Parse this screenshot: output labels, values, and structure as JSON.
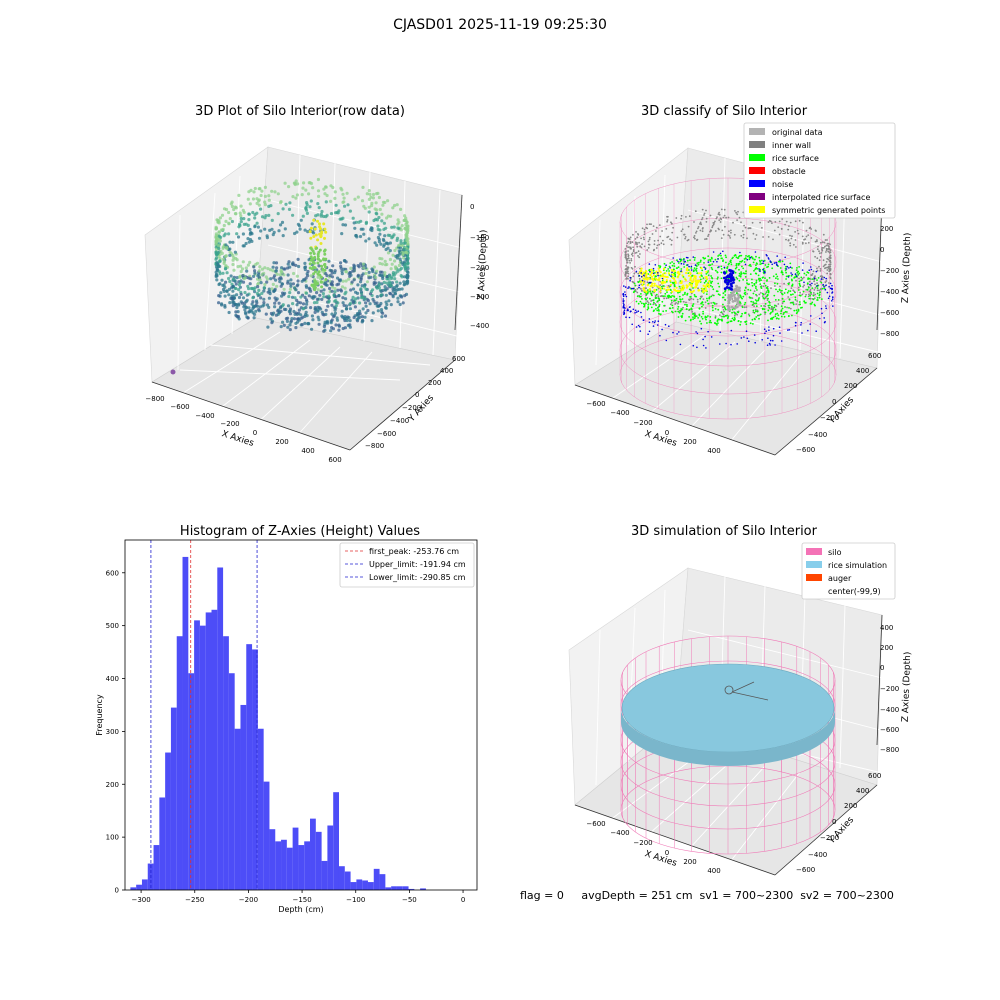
{
  "figure": {
    "suptitle": "CJASD01 2025-11-19 09:25:30",
    "footer": "flag = 0     avgDepth = 251 cm  sv1 = 700~2300  sv2 = 700~2300"
  },
  "colors": {
    "hist_bar": "#4d4df7",
    "first_peak": "#e03030",
    "limit": "#2020d0",
    "silo_wire": "#f07ab7",
    "rice_sim": "#88c8de",
    "auger": "#ff4500",
    "raw_low": "#2b6f8e",
    "raw_high": "#e6e62a",
    "inner_wall": "#888888",
    "rice_surface": "#00ff00",
    "noise": "#0000dd",
    "symmetric": "#ffff00"
  },
  "chart_data": [
    {
      "type": "scatter",
      "title": "3D Plot of Silo Interior(row data)",
      "xlabel": "X Axies",
      "ylabel": "Y Axies",
      "zlabel": "Z Axies (Depth)",
      "x_ticks": [
        "−800",
        "−600",
        "−400",
        "−200",
        "0",
        "200",
        "400",
        "600"
      ],
      "y_ticks": [
        "−800",
        "−600",
        "−400",
        "−200",
        "0",
        "200",
        "400",
        "600"
      ],
      "z_ticks": [
        "0",
        "−100",
        "−200",
        "−300",
        "−400"
      ],
      "colormap": "viridis"
    },
    {
      "type": "scatter",
      "title": "3D classify of Silo Interior",
      "xlabel": "X Axies",
      "ylabel": "Y Axies",
      "zlabel": "Z Axies (Depth)",
      "x_ticks": [
        "−600",
        "−400",
        "−200",
        "0",
        "200",
        "400"
      ],
      "y_ticks": [
        "−600",
        "−400",
        "−200",
        "0",
        "200",
        "400",
        "600"
      ],
      "z_ticks": [
        "200",
        "0",
        "−200",
        "−400",
        "−600",
        "−800"
      ],
      "legend": [
        {
          "label": "original data",
          "color": "#b3b3b3"
        },
        {
          "label": "inner wall",
          "color": "#808080"
        },
        {
          "label": "rice surface",
          "color": "#00ff00"
        },
        {
          "label": "obstacle",
          "color": "#ff0000"
        },
        {
          "label": "noise",
          "color": "#0000ff"
        },
        {
          "label": "interpolated rice surface",
          "color": "#800080"
        },
        {
          "label": "symmetric generated points",
          "color": "#ffff00"
        }
      ],
      "legend_position": "upper right"
    },
    {
      "type": "bar",
      "title": "Histogram of Z-Axies (Height) Values",
      "xlabel": "Depth (cm)",
      "ylabel": "Frequency",
      "xlim": [
        -315,
        13
      ],
      "ylim": [
        0,
        662
      ],
      "x_ticks": [
        -300,
        -250,
        -200,
        -150,
        -100,
        -50,
        0
      ],
      "y_ticks": [
        0,
        100,
        200,
        300,
        400,
        500,
        600
      ],
      "bin_start": -310,
      "bin_width": 5.4,
      "values": [
        5,
        10,
        20,
        50,
        85,
        175,
        260,
        345,
        480,
        630,
        410,
        510,
        500,
        525,
        530,
        610,
        480,
        410,
        305,
        350,
        465,
        455,
        305,
        205,
        115,
        92,
        95,
        80,
        118,
        85,
        92,
        135,
        110,
        55,
        122,
        185,
        45,
        35,
        15,
        20,
        18,
        15,
        40,
        30,
        5,
        7,
        7,
        7,
        2,
        0,
        3,
        0
      ],
      "vlines": [
        {
          "label": "first_peak: -253.76 cm",
          "x": -253.76,
          "color": "#e03030"
        },
        {
          "label": "Upper_limit: -191.94 cm",
          "x": -191.94,
          "color": "#2020d0"
        },
        {
          "label": "Lower_limit: -290.85 cm",
          "x": -290.85,
          "color": "#2020d0"
        }
      ],
      "legend_position": "upper right"
    },
    {
      "type": "scatter",
      "title": "3D simulation of Silo Interior",
      "xlabel": "X Axies",
      "ylabel": "Y Axies",
      "zlabel": "Z Axies (Depth)",
      "x_ticks": [
        "−600",
        "−400",
        "−200",
        "0",
        "200",
        "400"
      ],
      "y_ticks": [
        "−600",
        "−400",
        "−200",
        "0",
        "200",
        "400",
        "600"
      ],
      "z_ticks": [
        "400",
        "200",
        "0",
        "−200",
        "−400",
        "−600",
        "−800"
      ],
      "legend": [
        {
          "label": "silo",
          "color": "#f472b6"
        },
        {
          "label": "rice simulation",
          "color": "#87ceeb"
        },
        {
          "label": "auger",
          "color": "#ff4500"
        },
        {
          "label": "center(-99,9)",
          "color": ""
        }
      ],
      "legend_position": "upper right"
    }
  ]
}
